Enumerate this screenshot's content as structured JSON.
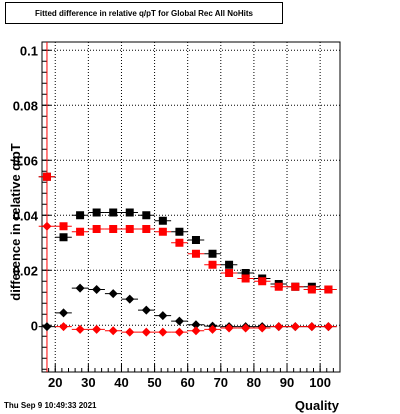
{
  "title": "Fitted difference in relative q/pT for Global Rec All NoHits",
  "timestamp": "Thu Sep  9 10:49:33 2021",
  "chart_data": {
    "type": "scatter",
    "title": "Fitted difference in relative q/pT for Global Rec All NoHits",
    "xlabel": "Quality",
    "ylabel": "difference in relative q/pT",
    "xlim": [
      16,
      106
    ],
    "ylim": [
      -0.017,
      0.103
    ],
    "x_ticks": [
      20,
      30,
      40,
      50,
      60,
      70,
      80,
      90,
      100
    ],
    "x_tick_labels": [
      "20",
      "30",
      "40",
      "50",
      "60",
      "70",
      "80",
      "90",
      "100"
    ],
    "y_ticks": [
      0,
      0.02,
      0.04,
      0.06,
      0.08,
      0.1
    ],
    "y_tick_labels": [
      "0",
      "0.02",
      "0.04",
      "0.06",
      "0.08",
      "0.1"
    ],
    "grid": true,
    "vline_x": 17.5,
    "x_error": 2.5,
    "series": [
      {
        "marker": "square",
        "color": "#000000",
        "x": [
          17.5,
          22.5,
          27.5,
          32.5,
          37.5,
          42.5,
          47.5,
          52.5,
          57.5,
          62.5,
          67.5,
          72.5,
          77.5,
          82.5,
          87.5,
          92.5,
          97.5,
          102.5
        ],
        "y": [
          0.054,
          0.032,
          0.04,
          0.041,
          0.041,
          0.041,
          0.04,
          0.038,
          0.034,
          0.031,
          0.026,
          0.022,
          0.019,
          0.017,
          0.015,
          0.014,
          0.014,
          0.013
        ]
      },
      {
        "marker": "square",
        "color": "#ff0000",
        "x": [
          17.5,
          22.5,
          27.5,
          32.5,
          37.5,
          42.5,
          47.5,
          52.5,
          57.5,
          62.5,
          67.5,
          72.5,
          77.5,
          82.5,
          87.5,
          92.5,
          97.5,
          102.5
        ],
        "y": [
          0.054,
          0.036,
          0.034,
          0.035,
          0.035,
          0.035,
          0.035,
          0.034,
          0.03,
          0.026,
          0.022,
          0.019,
          0.017,
          0.016,
          0.014,
          0.014,
          0.013,
          0.013
        ]
      },
      {
        "marker": "diamond",
        "color": "#000000",
        "x": [
          17.5,
          22.5,
          27.5,
          32.5,
          37.5,
          42.5,
          47.5,
          52.5,
          57.5,
          62.5,
          67.5,
          72.5,
          77.5,
          82.5,
          87.5,
          92.5,
          97.5,
          102.5
        ],
        "y": [
          -0.0005,
          0.0045,
          0.0135,
          0.013,
          0.0115,
          0.0095,
          0.0055,
          0.0035,
          0.0015,
          0.0002,
          -0.0003,
          -0.0005,
          -0.0005,
          -0.0005,
          -0.0005,
          -0.0005,
          -0.0005,
          -0.0005
        ]
      },
      {
        "marker": "diamond",
        "color": "#ff0000",
        "x": [
          17.5,
          22.5,
          27.5,
          32.5,
          37.5,
          42.5,
          47.5,
          52.5,
          57.5,
          62.5,
          67.5,
          72.5,
          77.5,
          82.5,
          87.5,
          92.5,
          97.5,
          102.5
        ],
        "y": [
          0.036,
          -0.0005,
          -0.0015,
          -0.0015,
          -0.002,
          -0.0025,
          -0.0025,
          -0.0025,
          -0.0025,
          -0.002,
          -0.0015,
          -0.001,
          -0.001,
          -0.001,
          -0.0005,
          -0.0005,
          -0.0005,
          -0.0005
        ]
      }
    ]
  }
}
